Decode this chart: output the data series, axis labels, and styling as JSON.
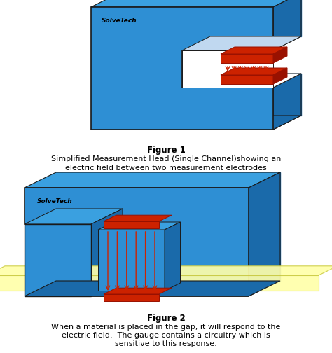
{
  "fig_width": 4.74,
  "fig_height": 5.04,
  "dpi": 100,
  "bg_color": "#ffffff",
  "blue_body": "#2E8FD4",
  "blue_side": "#1a6aaa",
  "blue_top": "#3aa0e0",
  "red_color": "#CC2200",
  "red_dark": "#991100",
  "yellow_color": "#FFFFAA",
  "yellow_edge": "#CCCC44",
  "white_color": "#ffffff",
  "dark_edge": "#1a1a1a",
  "logo_text": "SolveTech",
  "fig1_title": "Figure 1",
  "fig1_caption1": "Simplified Measurement Head (Single Channel)showing an",
  "fig1_caption2": "electric field between two measurement electrodes",
  "fig2_title": "Figure 2",
  "fig2_caption1": "When a material is placed in the gap, it will respond to the",
  "fig2_caption2": "electric field.  The gauge contains a circuitry which is",
  "fig2_caption3": "sensitive to this response.",
  "title_fontsize": 8.5,
  "caption_fontsize": 8.0,
  "logo_fontsize": 6.5
}
